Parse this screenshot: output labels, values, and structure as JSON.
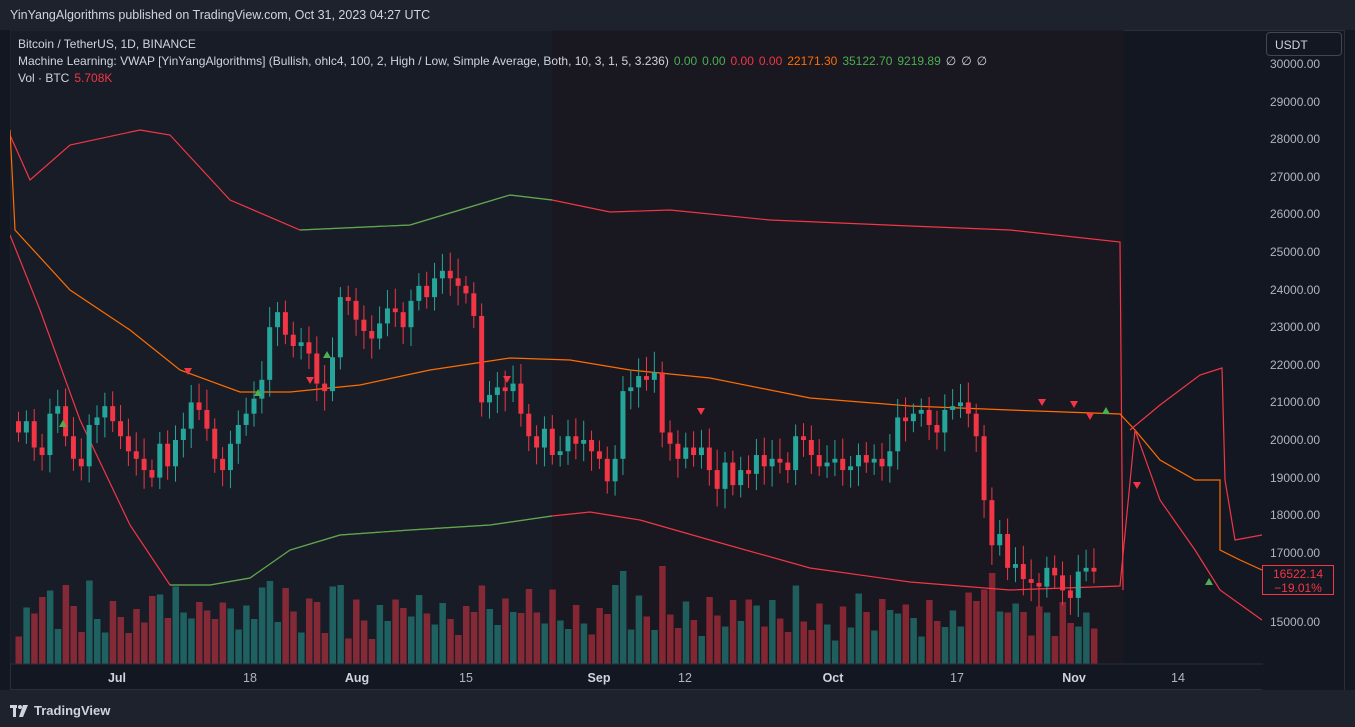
{
  "header": {
    "published": "YinYangAlgorithms published on TradingView.com, Oct 31, 2023 04:27 UTC"
  },
  "legend": {
    "symbol": "Bitcoin / TetherUS, 1D, BINANCE",
    "indicator": "Machine Learning: VWAP [YinYangAlgorithms] (Bullish, ohlc4, 100, 2, High / Low, Simple Average, Both, 10, 3, 1, 5, 3.236)",
    "values": [
      {
        "text": "0.00",
        "color": "#4caf50"
      },
      {
        "text": "0.00",
        "color": "#4caf50"
      },
      {
        "text": "0.00",
        "color": "#f23645"
      },
      {
        "text": "0.00",
        "color": "#f23645"
      },
      {
        "text": "22171.30",
        "color": "#ff6d00"
      },
      {
        "text": "35122.70",
        "color": "#4caf50"
      },
      {
        "text": "9219.89",
        "color": "#4caf50"
      },
      {
        "text": "∅",
        "color": "#d1d4dc"
      },
      {
        "text": "∅",
        "color": "#d1d4dc"
      },
      {
        "text": "∅",
        "color": "#d1d4dc"
      }
    ],
    "vol_label": "Vol · BTC",
    "vol_value": "5.708K"
  },
  "currency": "USDT",
  "price_axis": [
    "30000.00",
    "29000.00",
    "28000.00",
    "27000.00",
    "26000.00",
    "25000.00",
    "24000.00",
    "23000.00",
    "22000.00",
    "21000.00",
    "20000.00",
    "19000.00",
    "18000.00",
    "17000.00",
    "15000.00"
  ],
  "time_axis": [
    {
      "label": "Jul",
      "bold": true
    },
    {
      "label": "18",
      "bold": false
    },
    {
      "label": "Aug",
      "bold": true
    },
    {
      "label": "15",
      "bold": false
    },
    {
      "label": "Sep",
      "bold": true
    },
    {
      "label": "12",
      "bold": false
    },
    {
      "label": "Oct",
      "bold": true
    },
    {
      "label": "17",
      "bold": false
    },
    {
      "label": "Nov",
      "bold": true
    },
    {
      "label": "14",
      "bold": false
    }
  ],
  "last_price": {
    "value": "16522.14",
    "change": "−19.01%"
  },
  "colors": {
    "up": "#26a69a",
    "down": "#f23645",
    "vwap": "#ff6d00",
    "band_upper": "#f23645",
    "band_bull": "#4caf50"
  },
  "footer": {
    "brand": "TradingView"
  },
  "chart_data": {
    "type": "candlestick",
    "symbol": "Bitcoin / TetherUS",
    "interval": "1D",
    "close_series_approx": [
      20200,
      20500,
      19800,
      19600,
      20700,
      20900,
      20100,
      19500,
      19300,
      20400,
      20600,
      20900,
      20500,
      20100,
      19700,
      19500,
      19200,
      19000,
      19900,
      19300,
      20000,
      20300,
      21000,
      20800,
      20300,
      19500,
      19200,
      19900,
      20400,
      20700,
      21100,
      21600,
      23000,
      23400,
      22800,
      22500,
      22600,
      22300,
      21500,
      21300,
      22200,
      23800,
      23700,
      23200,
      22900,
      22700,
      23100,
      23500,
      23400,
      23000,
      23700,
      24100,
      23800,
      24300,
      24500,
      24300,
      24100,
      23900,
      23300,
      21000,
      21200,
      21400,
      21300,
      21500,
      20700,
      20100,
      19800,
      20300,
      19600,
      19700,
      20100,
      19900,
      20000,
      19700,
      19500,
      18900,
      19500,
      21300,
      21400,
      21700,
      21600,
      21800,
      20200,
      19900,
      19500,
      19800,
      19600,
      19800,
      19200,
      18700,
      19400,
      18800,
      19200,
      19100,
      19600,
      19300,
      19500,
      19400,
      19200,
      20100,
      20000,
      19600,
      19300,
      19400,
      19500,
      19200,
      19300,
      19600,
      19400,
      19500,
      19300,
      19700,
      20600,
      20500,
      20700,
      20800,
      20400,
      20200,
      20800,
      20900,
      21000,
      20700,
      20100,
      18400,
      17200,
      17500,
      16600,
      16700,
      16300,
      16200,
      16100,
      16600,
      16400,
      16000,
      15800,
      16500,
      16600,
      16500
    ]
  }
}
